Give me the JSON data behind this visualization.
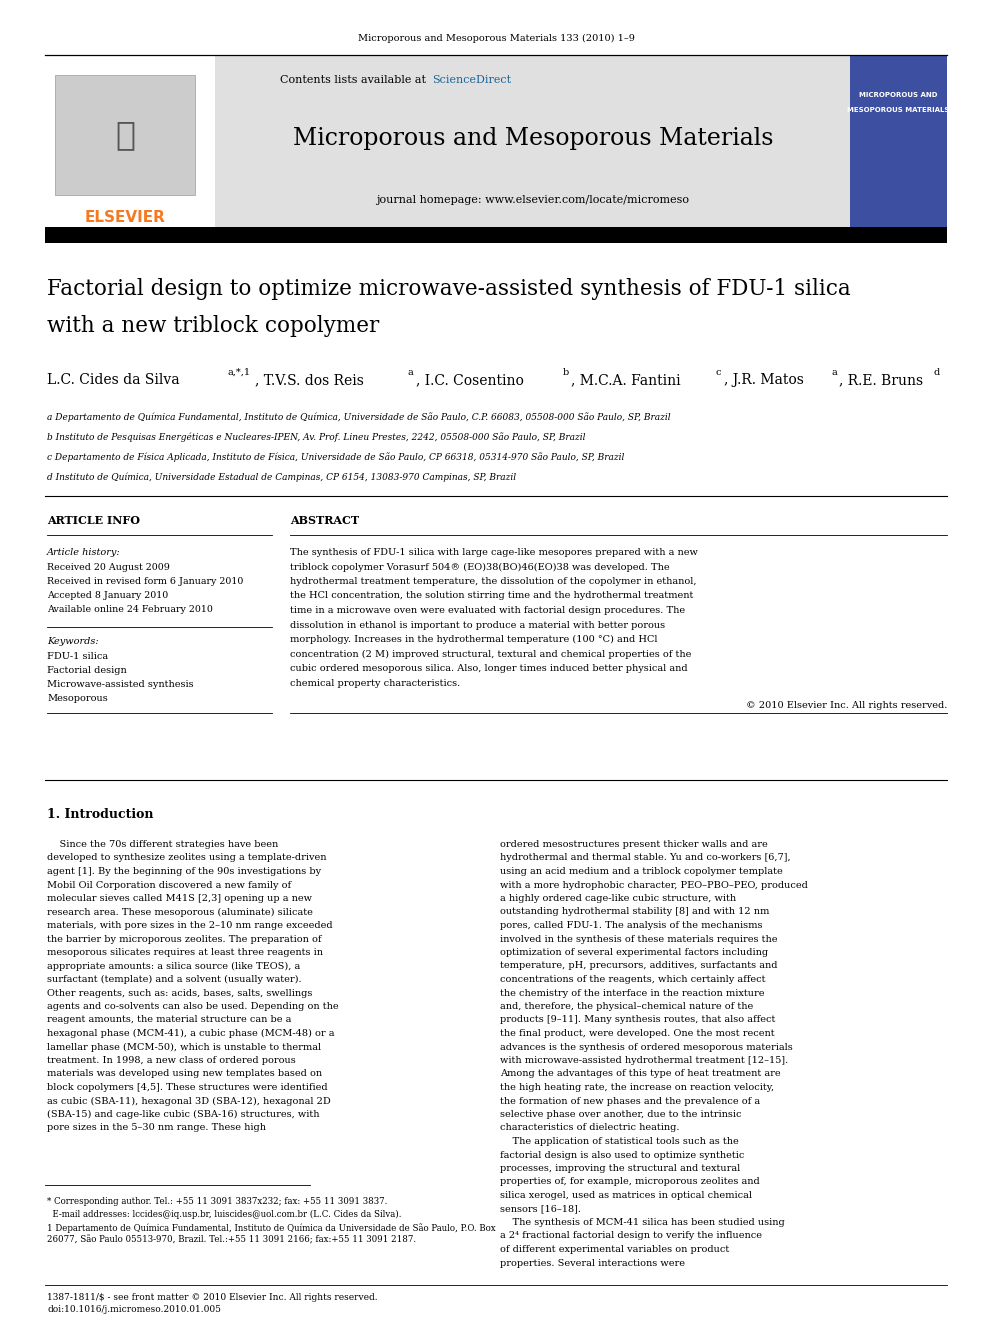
{
  "page_width": 9.92,
  "page_height": 13.23,
  "bg_color": "#ffffff",
  "journal_header_text": "Microporous and Mesoporous Materials 133 (2010) 1–9",
  "header_bg": "#e0e0e0",
  "contents_text": "Contents lists available at ",
  "sciencedirect_text": "ScienceDirect",
  "sciencedirect_color": "#1a6496",
  "journal_title": "Microporous and Mesoporous Materials",
  "journal_homepage": "journal homepage: www.elsevier.com/locate/micromeso",
  "elsevier_color": "#f47920",
  "paper_title_line1": "Factorial design to optimize microwave-assisted synthesis of FDU-1 silica",
  "paper_title_line2": "with a new triblock copolymer",
  "authors": "L.C. Cides da Silva",
  "authors_super1": "a,*,1",
  "authors_rest": ", T.V.S. dos Reis a, I.C. Cosentino b, M.C.A. Fantini c, J.R. Matos a, R.E. Bruns d",
  "affil_a": "a Departamento de Química Fundamental, Instituto de Química, Universidade de São Paulo, C.P. 66083, 05508-000 São Paulo, SP, Brazil",
  "affil_b": "b Instituto de Pesquisas Energéticas e Nucleares-IPEN, Av. Prof. Lineu Prestes, 2242, 05508-000 São Paulo, SP, Brazil",
  "affil_c": "c Departamento de Física Aplicada, Instituto de Física, Universidade de São Paulo, CP 66318, 05314-970 São Paulo, SP, Brazil",
  "affil_d": "d Instituto de Química, Universidade Estadual de Campinas, CP 6154, 13083-970 Campinas, SP, Brazil",
  "article_info_title": "ARTICLE INFO",
  "article_history_title": "Article history:",
  "history_items": [
    "Received 20 August 2009",
    "Received in revised form 6 January 2010",
    "Accepted 8 January 2010",
    "Available online 24 February 2010"
  ],
  "keywords_title": "Keywords:",
  "keywords": [
    "FDU-1 silica",
    "Factorial design",
    "Microwave-assisted synthesis",
    "Mesoporous"
  ],
  "abstract_title": "ABSTRACT",
  "abstract_text": "The synthesis of FDU-1 silica with large cage-like mesopores prepared with a new triblock copolymer Vorasurf 504® (EO)38(BO)46(EO)38 was developed. The hydrothermal treatment temperature, the dissolution of the copolymer in ethanol, the HCl concentration, the solution stirring time and the hydrothermal treatment time in a microwave oven were evaluated with factorial design procedures. The dissolution in ethanol is important to produce a material with better porous morphology. Increases in the hydrothermal temperature (100 °C) and HCl concentration (2 M) improved structural, textural and chemical properties of the cubic ordered mesoporous silica. Also, longer times induced better physical and chemical property characteristics.",
  "copyright_text": "© 2010 Elsevier Inc. All rights reserved.",
  "intro_title": "1. Introduction",
  "intro_col1": "    Since the 70s different strategies have been developed to synthesize zeolites using a template-driven agent [1]. By the beginning of the 90s investigations by Mobil Oil Corporation discovered a new family of molecular sieves called M41S [2,3] opening up a new research area. These mesoporous (aluminate) silicate materials, with pore sizes in the 2–10 nm range exceeded the barrier by microporous zeolites. The preparation of mesoporous silicates requires at least three reagents in appropriate amounts: a silica source (like TEOS), a surfactant (template) and a solvent (usually water). Other reagents, such as: acids, bases, salts, swellings agents and co-solvents can also be used. Depending on the reagent amounts, the material structure can be a hexagonal phase (MCM-41), a cubic phase (MCM-48) or a lamellar phase (MCM-50), which is unstable to thermal treatment. In 1998, a new class of ordered porous materials was developed using new templates based on block copolymers [4,5]. These structures were identified as cubic (SBA-11), hexagonal 3D (SBA-12), hexagonal 2D (SBA-15) and cage-like cubic (SBA-16) structures, with pore sizes in the 5–30 nm range. These high",
  "intro_col2": "ordered mesostructures present thicker walls and are hydrothermal and thermal stable. Yu and co-workers [6,7], using an acid medium and a triblock copolymer template with a more hydrophobic character, PEO–PBO–PEO, produced a highly ordered cage-like cubic structure, with outstanding hydrothermal stability [8] and with 12 nm pores, called FDU-1. The analysis of the mechanisms involved in the synthesis of these materials requires the optimization of several experimental factors including temperature, pH, precursors, additives, surfactants and concentrations of the reagents, which certainly affect the chemistry of the interface in the reaction mixture and, therefore, the physical–chemical nature of the products [9–11]. Many synthesis routes, that also affect the final product, were developed. One the most recent advances is the synthesis of ordered mesoporous materials with microwave-assisted hydrothermal treatment [12–15]. Among the advantages of this type of heat treatment are the high heating rate, the increase on reaction velocity, the formation of new phases and the prevalence of a selective phase over another, due to the intrinsic characteristics of dielectric heating.\n    The application of statistical tools such as the factorial design is also used to optimize synthetic processes, improving the structural and textural properties of, for example, microporous zeolites and silica xerogel, used as matrices in optical chemical sensors [16–18].\n    The synthesis of MCM-41 silica has been studied using a 2⁴ fractional factorial design to verify the influence of different experimental variables on product properties. Several interactions were",
  "footnote_star": "* Corresponding author. Tel.: +55 11 3091 3837x232; fax: +55 11 3091 3837.",
  "footnote_email": "  E-mail addresses: lccides@iq.usp.br, luiscides@uol.com.br (L.C. Cides da Silva).",
  "footnote_1": "1 Departamento de Química Fundamental, Instituto de Química da Universidade de São Paulo, P.O. Box 26077, São Paulo 05513-970, Brazil. Tel.:+55 11 3091 2166; fax:+55 11 3091 2187.",
  "bottom_text1": "1387-1811/$ - see front matter © 2010 Elsevier Inc. All rights reserved.",
  "bottom_text2": "doi:10.1016/j.micromeso.2010.01.005",
  "thumb_bg": "#3d4fa0",
  "thumb_text1": "MICROPOROUS AND",
  "thumb_text2": "MESOPOROUS MATERIALS"
}
